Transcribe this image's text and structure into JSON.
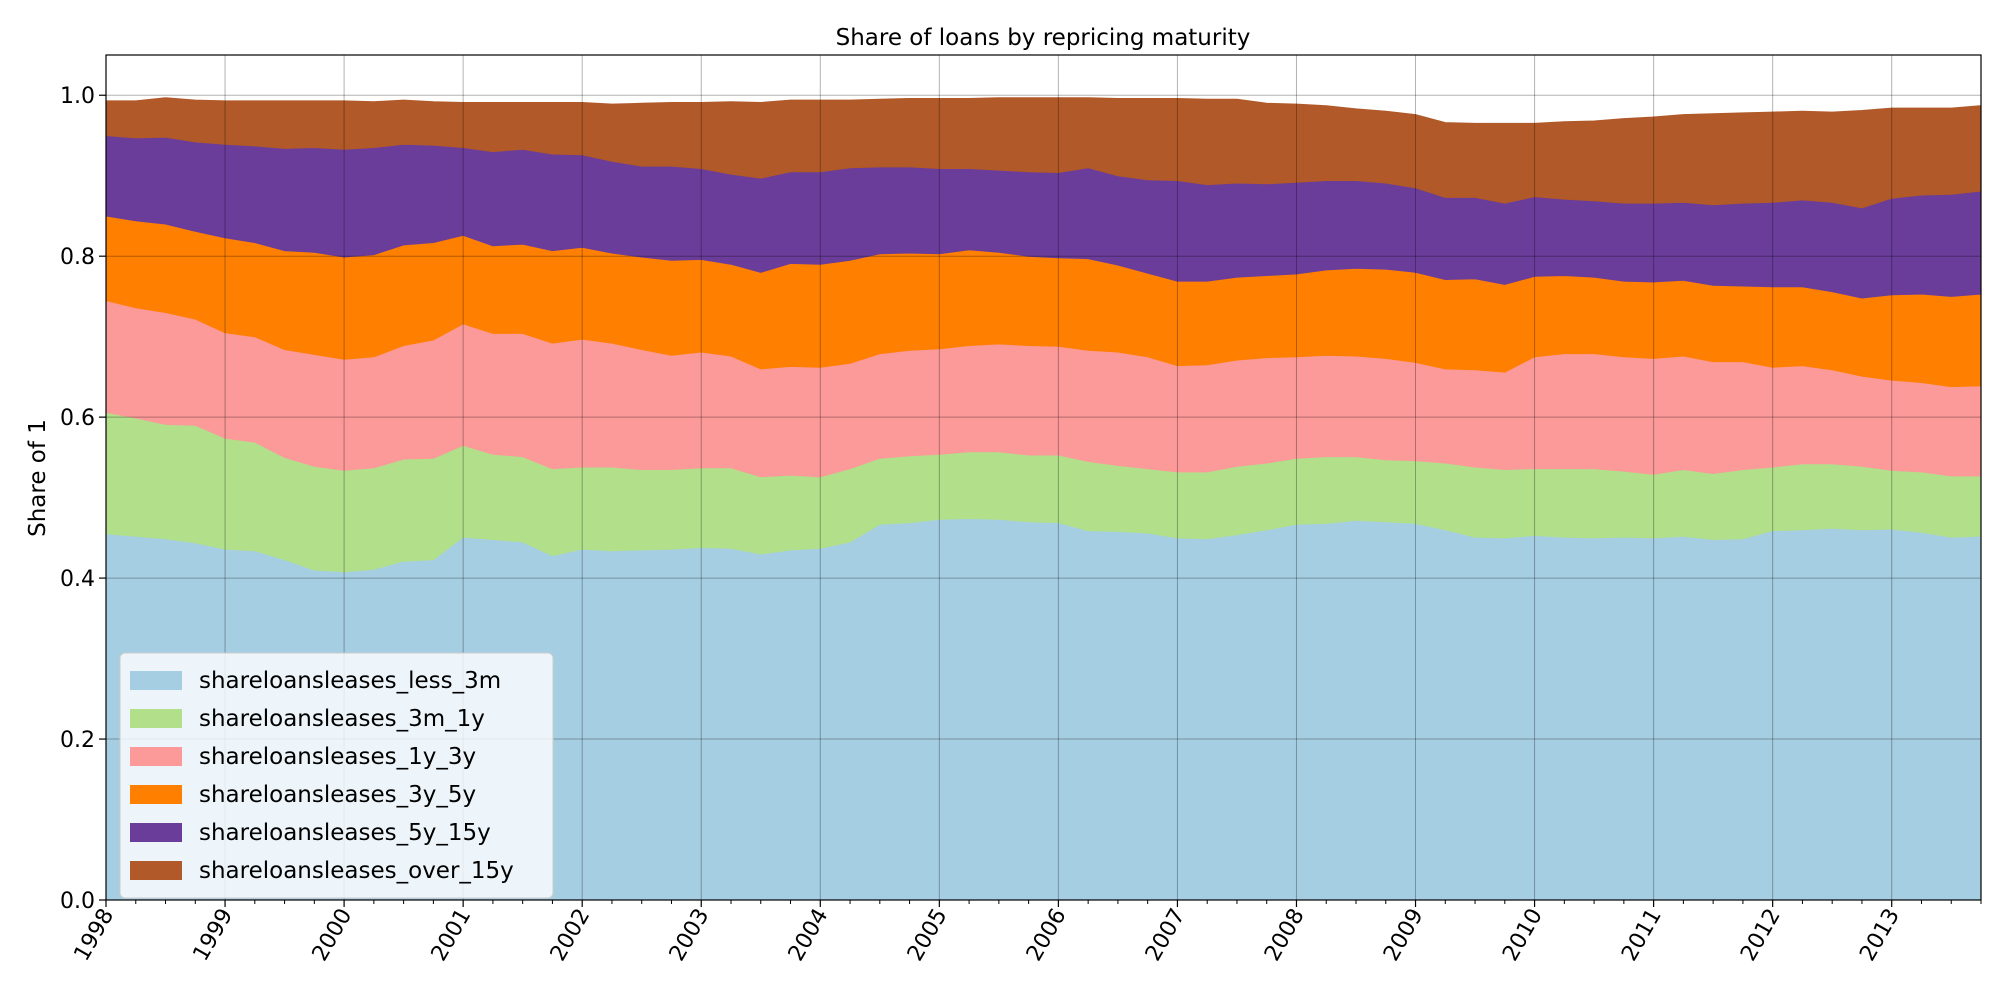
{
  "chart_data": {
    "type": "area",
    "stacked": true,
    "title": "Share of loans by repricing maturity",
    "xlabel": "",
    "ylabel": "Share of 1",
    "xlim": [
      1998.0,
      2013.75
    ],
    "ylim": [
      0.0,
      1.05
    ],
    "yticks": [
      0.0,
      0.2,
      0.4,
      0.6,
      0.8,
      1.0
    ],
    "ytick_labels": [
      "0.0",
      "0.2",
      "0.4",
      "0.6",
      "0.8",
      "1.0"
    ],
    "xticks": [
      1998,
      1999,
      2000,
      2001,
      2002,
      2003,
      2004,
      2005,
      2006,
      2007,
      2008,
      2009,
      2010,
      2011,
      2012,
      2013
    ],
    "xtick_labels": [
      "1998",
      "1999",
      "2000",
      "2001",
      "2002",
      "2003",
      "2004",
      "2005",
      "2006",
      "2007",
      "2008",
      "2009",
      "2010",
      "2011",
      "2012",
      "2013"
    ],
    "grid": true,
    "legend_position": "lower-left",
    "x": [
      1998.0,
      1998.25,
      1998.5,
      1998.75,
      1999.0,
      1999.25,
      1999.5,
      1999.75,
      2000.0,
      2000.25,
      2000.5,
      2000.75,
      2001.0,
      2001.25,
      2001.5,
      2001.75,
      2002.0,
      2002.25,
      2002.5,
      2002.75,
      2003.0,
      2003.25,
      2003.5,
      2003.75,
      2004.0,
      2004.25,
      2004.5,
      2004.75,
      2005.0,
      2005.25,
      2005.5,
      2005.75,
      2006.0,
      2006.25,
      2006.5,
      2006.75,
      2007.0,
      2007.25,
      2007.5,
      2007.75,
      2008.0,
      2008.25,
      2008.5,
      2008.75,
      2009.0,
      2009.25,
      2009.5,
      2009.75,
      2010.0,
      2010.25,
      2010.5,
      2010.75,
      2011.0,
      2011.25,
      2011.5,
      2011.75,
      2012.0,
      2012.25,
      2012.5,
      2012.75,
      2013.0,
      2013.25,
      2013.5,
      2013.75
    ],
    "series": [
      {
        "name": "shareloansleases_less_3m",
        "color": "#a6cee3",
        "values": [
          0.455,
          0.452,
          0.449,
          0.444,
          0.436,
          0.434,
          0.423,
          0.41,
          0.408,
          0.411,
          0.421,
          0.423,
          0.451,
          0.448,
          0.445,
          0.428,
          0.436,
          0.434,
          0.435,
          0.436,
          0.438,
          0.437,
          0.43,
          0.435,
          0.437,
          0.445,
          0.467,
          0.469,
          0.473,
          0.474,
          0.473,
          0.47,
          0.469,
          0.459,
          0.458,
          0.456,
          0.45,
          0.449,
          0.454,
          0.46,
          0.467,
          0.468,
          0.472,
          0.47,
          0.468,
          0.46,
          0.451,
          0.45,
          0.453,
          0.451,
          0.45,
          0.451,
          0.45,
          0.452,
          0.448,
          0.449,
          0.459,
          0.46,
          0.462,
          0.46,
          0.461,
          0.457,
          0.451,
          0.452
        ]
      },
      {
        "name": "shareloansleases_3m_1y",
        "color": "#b2df8a",
        "values": [
          0.151,
          0.147,
          0.142,
          0.146,
          0.138,
          0.135,
          0.127,
          0.129,
          0.126,
          0.126,
          0.127,
          0.126,
          0.114,
          0.106,
          0.106,
          0.108,
          0.102,
          0.104,
          0.1,
          0.099,
          0.099,
          0.1,
          0.096,
          0.093,
          0.089,
          0.091,
          0.082,
          0.083,
          0.081,
          0.083,
          0.084,
          0.083,
          0.084,
          0.086,
          0.082,
          0.08,
          0.082,
          0.083,
          0.085,
          0.083,
          0.082,
          0.083,
          0.079,
          0.077,
          0.078,
          0.083,
          0.087,
          0.085,
          0.083,
          0.085,
          0.086,
          0.082,
          0.079,
          0.083,
          0.082,
          0.086,
          0.079,
          0.082,
          0.08,
          0.079,
          0.073,
          0.075,
          0.076,
          0.075
        ]
      },
      {
        "name": "shareloansleases_1y_3y",
        "color": "#fb9a99",
        "values": [
          0.139,
          0.137,
          0.139,
          0.132,
          0.131,
          0.131,
          0.134,
          0.139,
          0.138,
          0.138,
          0.141,
          0.147,
          0.151,
          0.15,
          0.153,
          0.156,
          0.159,
          0.154,
          0.149,
          0.142,
          0.144,
          0.139,
          0.134,
          0.135,
          0.136,
          0.131,
          0.13,
          0.131,
          0.131,
          0.132,
          0.134,
          0.136,
          0.135,
          0.138,
          0.141,
          0.139,
          0.132,
          0.133,
          0.132,
          0.131,
          0.126,
          0.126,
          0.125,
          0.126,
          0.122,
          0.117,
          0.121,
          0.121,
          0.139,
          0.143,
          0.143,
          0.142,
          0.144,
          0.141,
          0.139,
          0.134,
          0.124,
          0.122,
          0.117,
          0.112,
          0.112,
          0.111,
          0.111,
          0.112
        ]
      },
      {
        "name": "shareloansleases_3y_5y",
        "color": "#ff7f00",
        "values": [
          0.105,
          0.108,
          0.11,
          0.109,
          0.118,
          0.117,
          0.123,
          0.127,
          0.127,
          0.127,
          0.125,
          0.121,
          0.11,
          0.109,
          0.111,
          0.115,
          0.114,
          0.112,
          0.115,
          0.118,
          0.115,
          0.114,
          0.12,
          0.128,
          0.128,
          0.128,
          0.124,
          0.121,
          0.118,
          0.119,
          0.114,
          0.111,
          0.11,
          0.114,
          0.108,
          0.104,
          0.105,
          0.104,
          0.103,
          0.102,
          0.103,
          0.106,
          0.109,
          0.111,
          0.112,
          0.111,
          0.113,
          0.109,
          0.1,
          0.097,
          0.095,
          0.094,
          0.095,
          0.094,
          0.095,
          0.094,
          0.1,
          0.098,
          0.097,
          0.097,
          0.106,
          0.11,
          0.112,
          0.114
        ]
      },
      {
        "name": "shareloansleases_5y_15y",
        "color": "#6a3d9a",
        "values": [
          0.1,
          0.103,
          0.108,
          0.111,
          0.116,
          0.12,
          0.127,
          0.13,
          0.134,
          0.133,
          0.125,
          0.121,
          0.109,
          0.117,
          0.118,
          0.12,
          0.115,
          0.114,
          0.113,
          0.117,
          0.113,
          0.112,
          0.117,
          0.114,
          0.115,
          0.115,
          0.108,
          0.107,
          0.106,
          0.101,
          0.102,
          0.105,
          0.106,
          0.113,
          0.111,
          0.116,
          0.125,
          0.12,
          0.117,
          0.114,
          0.114,
          0.111,
          0.109,
          0.107,
          0.105,
          0.102,
          0.101,
          0.101,
          0.099,
          0.095,
          0.095,
          0.097,
          0.098,
          0.097,
          0.1,
          0.103,
          0.105,
          0.108,
          0.111,
          0.112,
          0.12,
          0.123,
          0.127,
          0.128
        ]
      },
      {
        "name": "shareloansleases_over_15y",
        "color": "#b15928",
        "values": [
          0.043,
          0.046,
          0.049,
          0.052,
          0.054,
          0.056,
          0.059,
          0.058,
          0.06,
          0.057,
          0.055,
          0.054,
          0.056,
          0.061,
          0.058,
          0.064,
          0.065,
          0.071,
          0.078,
          0.079,
          0.082,
          0.09,
          0.094,
          0.089,
          0.089,
          0.084,
          0.084,
          0.085,
          0.087,
          0.087,
          0.09,
          0.092,
          0.093,
          0.087,
          0.096,
          0.101,
          0.102,
          0.106,
          0.104,
          0.1,
          0.097,
          0.093,
          0.089,
          0.089,
          0.091,
          0.093,
          0.092,
          0.099,
          0.091,
          0.096,
          0.099,
          0.105,
          0.107,
          0.109,
          0.113,
          0.112,
          0.112,
          0.11,
          0.112,
          0.121,
          0.112,
          0.108,
          0.107,
          0.106
        ]
      }
    ]
  }
}
